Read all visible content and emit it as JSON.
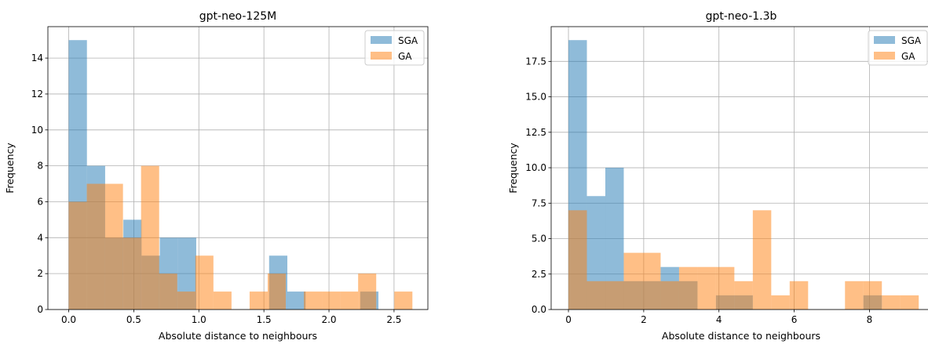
{
  "chart_data": [
    {
      "type": "bar",
      "title": "gpt-neo-125M",
      "xlabel": "Absolute distance to neighbours",
      "ylabel": "Frequency",
      "xlim": [
        -0.16,
        2.76
      ],
      "ylim": [
        0,
        15.75
      ],
      "xticks": [
        0.0,
        0.5,
        1.0,
        1.5,
        2.0,
        2.5
      ],
      "xtick_labels": [
        "0.0",
        "0.5",
        "1.0",
        "1.5",
        "2.0",
        "2.5"
      ],
      "yticks": [
        0,
        2,
        4,
        6,
        8,
        10,
        12,
        14
      ],
      "ytick_labels": [
        "0",
        "2",
        "4",
        "6",
        "8",
        "10",
        "12",
        "14"
      ],
      "grid": true,
      "legend_position": "top-right",
      "series": [
        {
          "name": "SGA",
          "color": "#1f77b4",
          "bins": [
            {
              "x0": 0.0,
              "x1": 0.14,
              "count": 15
            },
            {
              "x0": 0.14,
              "x1": 0.28,
              "count": 8
            },
            {
              "x0": 0.28,
              "x1": 0.42,
              "count": 4
            },
            {
              "x0": 0.42,
              "x1": 0.56,
              "count": 5
            },
            {
              "x0": 0.56,
              "x1": 0.7,
              "count": 3
            },
            {
              "x0": 0.7,
              "x1": 0.84,
              "count": 4
            },
            {
              "x0": 0.84,
              "x1": 0.98,
              "count": 4
            },
            {
              "x0": 1.54,
              "x1": 1.68,
              "count": 3
            },
            {
              "x0": 1.68,
              "x1": 1.82,
              "count": 1
            },
            {
              "x0": 2.24,
              "x1": 2.38,
              "count": 1
            }
          ]
        },
        {
          "name": "GA",
          "color": "#ff7f0e",
          "bins": [
            {
              "x0": 0.0,
              "x1": 0.139,
              "count": 6
            },
            {
              "x0": 0.139,
              "x1": 0.278,
              "count": 7
            },
            {
              "x0": 0.278,
              "x1": 0.417,
              "count": 7
            },
            {
              "x0": 0.417,
              "x1": 0.556,
              "count": 4
            },
            {
              "x0": 0.556,
              "x1": 0.695,
              "count": 8
            },
            {
              "x0": 0.695,
              "x1": 0.834,
              "count": 2
            },
            {
              "x0": 0.834,
              "x1": 0.973,
              "count": 1
            },
            {
              "x0": 0.973,
              "x1": 1.112,
              "count": 3
            },
            {
              "x0": 1.112,
              "x1": 1.251,
              "count": 1
            },
            {
              "x0": 1.39,
              "x1": 1.529,
              "count": 1
            },
            {
              "x0": 1.529,
              "x1": 1.668,
              "count": 2
            },
            {
              "x0": 1.807,
              "x1": 1.946,
              "count": 1
            },
            {
              "x0": 1.946,
              "x1": 2.085,
              "count": 1
            },
            {
              "x0": 2.085,
              "x1": 2.224,
              "count": 1
            },
            {
              "x0": 2.224,
              "x1": 2.363,
              "count": 2
            },
            {
              "x0": 2.502,
              "x1": 2.641,
              "count": 1
            }
          ]
        }
      ]
    },
    {
      "type": "bar",
      "title": "gpt-neo-1.3b",
      "xlabel": "Absolute distance to neighbours",
      "ylabel": "Frequency",
      "xlim": [
        -0.46,
        9.64
      ],
      "ylim": [
        0,
        19.95
      ],
      "xticks": [
        0,
        2,
        4,
        6,
        8
      ],
      "xtick_labels": [
        "0",
        "2",
        "4",
        "6",
        "8"
      ],
      "yticks": [
        0,
        2.5,
        5,
        7.5,
        10,
        12.5,
        15,
        17.5
      ],
      "ytick_labels": [
        "0.0",
        "2.5",
        "5.0",
        "7.5",
        "10.0",
        "12.5",
        "15.0",
        "17.5"
      ],
      "grid": true,
      "legend_position": "top-right",
      "series": [
        {
          "name": "SGA",
          "color": "#1f77b4",
          "bins": [
            {
              "x0": 0.0,
              "x1": 0.49,
              "count": 19
            },
            {
              "x0": 0.49,
              "x1": 0.98,
              "count": 8
            },
            {
              "x0": 0.98,
              "x1": 1.47,
              "count": 10
            },
            {
              "x0": 1.47,
              "x1": 1.96,
              "count": 2
            },
            {
              "x0": 1.96,
              "x1": 2.45,
              "count": 2
            },
            {
              "x0": 2.45,
              "x1": 2.94,
              "count": 3
            },
            {
              "x0": 2.94,
              "x1": 3.43,
              "count": 2
            },
            {
              "x0": 3.92,
              "x1": 4.41,
              "count": 1
            },
            {
              "x0": 4.41,
              "x1": 4.9,
              "count": 1
            },
            {
              "x0": 7.84,
              "x1": 8.33,
              "count": 1
            }
          ]
        },
        {
          "name": "GA",
          "color": "#ff7f0e",
          "bins": [
            {
              "x0": 0.0,
              "x1": 0.49,
              "count": 7
            },
            {
              "x0": 0.49,
              "x1": 0.98,
              "count": 2
            },
            {
              "x0": 0.98,
              "x1": 1.47,
              "count": 2
            },
            {
              "x0": 1.47,
              "x1": 1.96,
              "count": 4
            },
            {
              "x0": 1.96,
              "x1": 2.45,
              "count": 4
            },
            {
              "x0": 2.45,
              "x1": 2.94,
              "count": 2
            },
            {
              "x0": 2.94,
              "x1": 3.43,
              "count": 3
            },
            {
              "x0": 3.43,
              "x1": 3.92,
              "count": 3
            },
            {
              "x0": 3.92,
              "x1": 4.41,
              "count": 3
            },
            {
              "x0": 4.41,
              "x1": 4.9,
              "count": 2
            },
            {
              "x0": 4.9,
              "x1": 5.39,
              "count": 7
            },
            {
              "x0": 5.39,
              "x1": 5.88,
              "count": 1
            },
            {
              "x0": 5.88,
              "x1": 6.37,
              "count": 2
            },
            {
              "x0": 7.35,
              "x1": 7.84,
              "count": 2
            },
            {
              "x0": 7.84,
              "x1": 8.33,
              "count": 2
            },
            {
              "x0": 8.33,
              "x1": 8.82,
              "count": 1
            },
            {
              "x0": 8.82,
              "x1": 9.31,
              "count": 1
            }
          ]
        }
      ]
    }
  ]
}
